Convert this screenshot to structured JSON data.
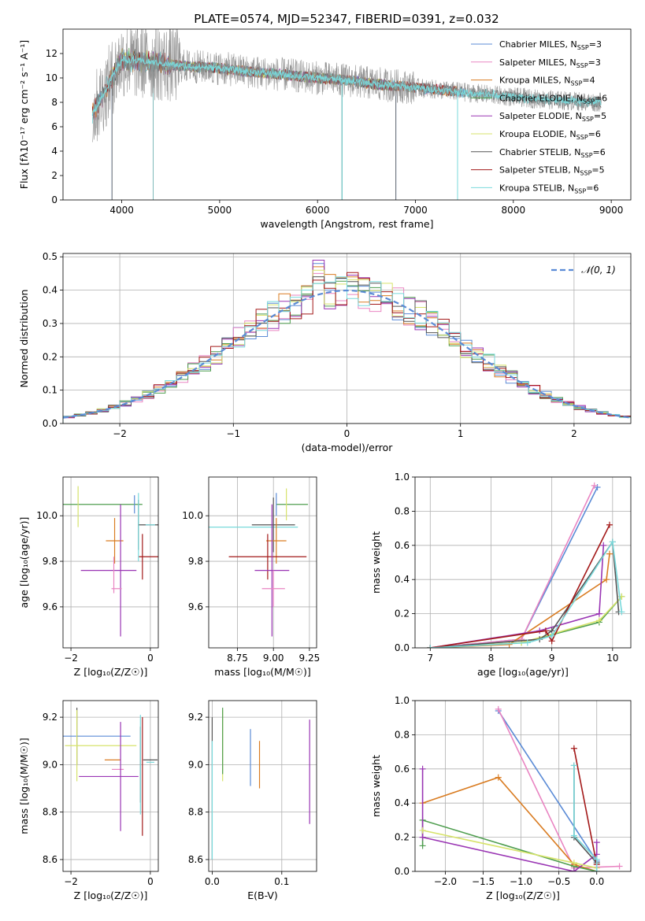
{
  "title": "PLATE=0574, MJD=52347, FIBERID=0391, z=0.032",
  "colors": {
    "chabrier_miles": "#5b8bd6",
    "salpeter_miles": "#e985c2",
    "kroupa_miles": "#d97c22",
    "chabrier_elodie": "#4f9e4f",
    "salpeter_elodie": "#9a36b4",
    "kroupa_elodie": "#d7e36b",
    "chabrier_stelib": "#555555",
    "salpeter_stelib": "#a31919",
    "kroupa_stelib": "#79d9db",
    "normal": "#5b8bd6",
    "grid": "#b0b0b0"
  },
  "chart_data": [
    {
      "id": "spectrum",
      "type": "line",
      "title": "PLATE=0574, MJD=52347, FIBERID=0391, z=0.032",
      "xlabel": "wavelength [Angstrom, rest frame]",
      "ylabel": "Flux [fλ10⁻¹⁷ erg cm⁻² s⁻¹ A⁻¹]",
      "xlim": [
        3400,
        9200
      ],
      "ylim": [
        0,
        14
      ],
      "xticks": [
        4000,
        5000,
        6000,
        7000,
        8000,
        9000
      ],
      "yticks": [
        0,
        2,
        4,
        6,
        8,
        10,
        12
      ],
      "grid": false,
      "legend_position": "upper-right",
      "legend": [
        {
          "label": "Chabrier MILES, N",
          "sub": "SSP",
          "suffix": "=3",
          "color_key": "chabrier_miles",
          "wmin": 3700,
          "wmax": 7500
        },
        {
          "label": "Salpeter MILES, N",
          "sub": "SSP",
          "suffix": "=3",
          "color_key": "salpeter_miles",
          "wmin": 3700,
          "wmax": 7430
        },
        {
          "label": "Kroupa MILES, N",
          "sub": "SSP",
          "suffix": "=4",
          "color_key": "kroupa_miles",
          "wmin": 3700,
          "wmax": 7430
        },
        {
          "label": "Chabrier ELODIE, N",
          "sub": "SSP",
          "suffix": "=6",
          "color_key": "chabrier_elodie",
          "wmin": 3900,
          "wmax": 6800
        },
        {
          "label": "Salpeter ELODIE, N",
          "sub": "SSP",
          "suffix": "=5",
          "color_key": "salpeter_elodie",
          "wmin": 3900,
          "wmax": 6800
        },
        {
          "label": "Kroupa ELODIE, N",
          "sub": "SSP",
          "suffix": "=6",
          "color_key": "kroupa_elodie",
          "wmin": 3900,
          "wmax": 6800
        },
        {
          "label": "Chabrier STELIB, N",
          "sub": "SSP",
          "suffix": "=6",
          "color_key": "chabrier_stelib",
          "wmin": 3700,
          "wmax": 8900
        },
        {
          "label": "Salpeter STELIB, N",
          "sub": "SSP",
          "suffix": "=5",
          "color_key": "salpeter_stelib",
          "wmin": 3700,
          "wmax": 7430
        },
        {
          "label": "Kroupa STELIB, N",
          "sub": "SSP",
          "suffix": "=6",
          "color_key": "kroupa_stelib",
          "wmin": 3700,
          "wmax": 8900
        }
      ],
      "data_trace": {
        "color_key": "chabrier_stelib",
        "x": [
          3700,
          4000,
          4300,
          4600,
          5000,
          5300,
          5600,
          6000,
          6300,
          6600,
          7000,
          7400,
          7800,
          8200,
          8600,
          8900
        ],
        "y": [
          7.0,
          11.5,
          11.3,
          11.0,
          10.8,
          10.5,
          10.3,
          10.0,
          9.8,
          9.5,
          9.2,
          8.9,
          8.6,
          8.3,
          8.1,
          8.0
        ]
      },
      "drops": [
        {
          "x": 3900,
          "y": 0
        },
        {
          "x": 4320,
          "y": 0
        },
        {
          "x": 6250,
          "y": 0
        },
        {
          "x": 6800,
          "y": 0
        },
        {
          "x": 7430,
          "y": 0
        }
      ]
    },
    {
      "id": "residuals",
      "type": "histogram",
      "xlabel": "(data-model)/error",
      "ylabel": "Normed distribution",
      "xlim": [
        -2.5,
        2.5
      ],
      "ylim": [
        0,
        0.51
      ],
      "xticks": [
        -2,
        -1,
        0,
        1,
        2
      ],
      "yticks": [
        0.0,
        0.1,
        0.2,
        0.3,
        0.4,
        0.5
      ],
      "grid": true,
      "legend_position": "upper-right",
      "legend_label": "𝒩(0, 1)",
      "bin_width": 0.1,
      "series": [
        {
          "color_key": "chabrier_miles",
          "peak": 0.48
        },
        {
          "color_key": "salpeter_miles",
          "peak": 0.45
        },
        {
          "color_key": "kroupa_miles",
          "peak": 0.47
        },
        {
          "color_key": "chabrier_elodie",
          "peak": 0.42
        },
        {
          "color_key": "salpeter_elodie",
          "peak": 0.49
        },
        {
          "color_key": "kroupa_elodie",
          "peak": 0.46
        },
        {
          "color_key": "chabrier_stelib",
          "peak": 0.44
        },
        {
          "color_key": "salpeter_stelib",
          "peak": 0.43
        },
        {
          "color_key": "kroupa_stelib",
          "peak": 0.42
        }
      ]
    },
    {
      "id": "age_vs_Z",
      "type": "errorbar",
      "xlabel": "Z [log₁₀(Z/Z☉)]",
      "ylabel": "age  [log₁₀(age/yr)]",
      "xlim": [
        -2.2,
        0.2
      ],
      "ylim": [
        9.42,
        10.17
      ],
      "xticks": [
        -2,
        0
      ],
      "yticks": [
        9.6,
        9.8,
        10.0
      ],
      "grid": true,
      "points": [
        {
          "color_key": "chabrier_elodie",
          "x": -1.2,
          "xerr": 1.0,
          "y": 10.05,
          "yerr": 0.0
        },
        {
          "color_key": "chabrier_miles",
          "x": -0.4,
          "xerr": 0.0,
          "y": 10.05,
          "yerr": 0.04
        },
        {
          "color_key": "kroupa_elodie",
          "x": -1.82,
          "xerr": 0.0,
          "y": 10.04,
          "yerr": 0.09
        },
        {
          "color_key": "kroupa_miles",
          "x": -0.9,
          "xerr": 0.22,
          "y": 9.89,
          "yerr": 0.1
        },
        {
          "color_key": "salpeter_elodie",
          "x": -1.05,
          "xerr": 0.7,
          "y": 9.76,
          "yerr": 0.0
        },
        {
          "color_key": "salpeter_elodie",
          "x": -0.75,
          "xerr": 0.0,
          "y": 9.76,
          "yerr": 0.29
        },
        {
          "color_key": "salpeter_miles",
          "x": -0.85,
          "xerr": 0.13,
          "y": 9.68,
          "yerr": 0.0
        },
        {
          "color_key": "salpeter_miles",
          "x": -0.92,
          "xerr": 0.0,
          "y": 9.74,
          "yerr": 0.08
        },
        {
          "color_key": "chabrier_stelib",
          "x": -0.3,
          "xerr": 0.0,
          "y": 9.96,
          "yerr": 0.11
        },
        {
          "color_key": "chabrier_stelib",
          "x": -0.05,
          "xerr": 0.25,
          "y": 9.96,
          "yerr": 0.0
        },
        {
          "color_key": "salpeter_stelib",
          "x": -0.2,
          "xerr": 0.0,
          "y": 9.82,
          "yerr": 0.1
        },
        {
          "color_key": "salpeter_stelib",
          "x": -0.04,
          "xerr": 0.25,
          "y": 9.82,
          "yerr": 0.0
        },
        {
          "color_key": "kroupa_stelib",
          "x": -0.3,
          "xerr": 0.0,
          "y": 9.95,
          "yerr": 0.15
        },
        {
          "color_key": "kroupa_stelib",
          "x": 0.0,
          "xerr": 0.12,
          "y": 9.96,
          "yerr": 0.0
        }
      ]
    },
    {
      "id": "age_vs_mass",
      "type": "errorbar",
      "xlabel": "mass [log₁₀(M/M☉)]",
      "ylabel": "",
      "xlim": [
        8.55,
        9.3
      ],
      "ylim": [
        9.42,
        10.17
      ],
      "xticks": [
        8.75,
        9.0,
        9.25
      ],
      "yticks": [
        9.6,
        9.8,
        10.0
      ],
      "grid": true,
      "points": [
        {
          "color_key": "chabrier_elodie",
          "x": 9.13,
          "xerr": 0.11,
          "y": 10.05,
          "yerr": 0.0
        },
        {
          "color_key": "kroupa_elodie",
          "x": 9.09,
          "xerr": 0.0,
          "y": 10.05,
          "yerr": 0.07
        },
        {
          "color_key": "chabrier_miles",
          "x": 9.02,
          "xerr": 0.0,
          "y": 10.05,
          "yerr": 0.05
        },
        {
          "color_key": "kroupa_stelib",
          "x": 8.85,
          "xerr": 0.32,
          "y": 9.95,
          "yerr": 0.0
        },
        {
          "color_key": "chabrier_stelib",
          "x": 9.0,
          "xerr": 0.15,
          "y": 9.96,
          "yerr": 0.12
        },
        {
          "color_key": "kroupa_miles",
          "x": 9.02,
          "xerr": 0.07,
          "y": 9.89,
          "yerr": 0.1
        },
        {
          "color_key": "salpeter_stelib",
          "x": 8.96,
          "xerr": 0.27,
          "y": 9.82,
          "yerr": 0.1
        },
        {
          "color_key": "salpeter_elodie",
          "x": 8.99,
          "xerr": 0.12,
          "y": 9.76,
          "yerr": 0.29
        },
        {
          "color_key": "salpeter_miles",
          "x": 9.0,
          "xerr": 0.08,
          "y": 9.68,
          "yerr": 0.08
        }
      ]
    },
    {
      "id": "massweight_vs_age",
      "type": "line",
      "xlabel": "age  [log₁₀(age/yr)]",
      "ylabel": "mass weight",
      "xlim": [
        6.75,
        10.3
      ],
      "ylim": [
        0,
        1.0
      ],
      "xticks": [
        7,
        8,
        9,
        10
      ],
      "yticks": [
        0.0,
        0.2,
        0.4,
        0.6,
        0.8,
        1.0
      ],
      "grid": true,
      "series": [
        {
          "color_key": "chabrier_miles",
          "x": [
            7.0,
            8.5,
            9.75
          ],
          "y": [
            0.0,
            0.05,
            0.94
          ]
        },
        {
          "color_key": "salpeter_miles",
          "x": [
            7.0,
            8.5,
            9.7
          ],
          "y": [
            0.0,
            0.05,
            0.95
          ]
        },
        {
          "color_key": "kroupa_miles",
          "x": [
            7.0,
            8.3,
            9.9,
            9.95
          ],
          "y": [
            0.0,
            0.02,
            0.4,
            0.55
          ]
        },
        {
          "color_key": "chabrier_elodie",
          "x": [
            7.0,
            8.5,
            9.78,
            10.15
          ],
          "y": [
            0.0,
            0.03,
            0.15,
            0.3
          ]
        },
        {
          "color_key": "salpeter_elodie",
          "x": [
            7.0,
            8.8,
            9.78,
            9.85
          ],
          "y": [
            0.0,
            0.1,
            0.2,
            0.6
          ]
        },
        {
          "color_key": "kroupa_elodie",
          "x": [
            7.0,
            8.5,
            9.78,
            10.15
          ],
          "y": [
            0.0,
            0.03,
            0.16,
            0.3
          ]
        },
        {
          "color_key": "chabrier_stelib",
          "x": [
            7.0,
            8.8,
            9.0,
            10.0,
            10.1
          ],
          "y": [
            0.0,
            0.05,
            0.1,
            0.62,
            0.21
          ]
        },
        {
          "color_key": "salpeter_stelib",
          "x": [
            7.0,
            8.9,
            9.0,
            9.95
          ],
          "y": [
            0.0,
            0.1,
            0.04,
            0.72
          ]
        },
        {
          "color_key": "kroupa_stelib",
          "x": [
            7.0,
            8.6,
            9.0,
            10.0,
            10.15
          ],
          "y": [
            0.0,
            0.03,
            0.07,
            0.62,
            0.21
          ]
        }
      ]
    },
    {
      "id": "mass_vs_Z",
      "type": "errorbar",
      "xlabel": "Z [log₁₀(Z/Z☉)]",
      "ylabel": "mass [log₁₀(M/M☉)]",
      "xlim": [
        -2.2,
        0.2
      ],
      "ylim": [
        8.55,
        9.27
      ],
      "xticks": [
        -2,
        0
      ],
      "yticks": [
        8.6,
        8.8,
        9.0,
        9.2
      ],
      "grid": true,
      "points": [
        {
          "color_key": "chabrier_miles",
          "x": -1.35,
          "xerr": 0.85,
          "y": 9.12,
          "yerr": 0.0
        },
        {
          "color_key": "chabrier_stelib",
          "x": -1.85,
          "xerr": 0.0,
          "y": 9.12,
          "yerr": 0.12
        },
        {
          "color_key": "kroupa_elodie",
          "x": -1.25,
          "xerr": 0.9,
          "y": 9.08,
          "yerr": 0.0
        },
        {
          "color_key": "kroupa_elodie",
          "x": -1.85,
          "xerr": 0.0,
          "y": 9.08,
          "yerr": 0.15
        },
        {
          "color_key": "kroupa_miles",
          "x": -0.95,
          "xerr": 0.2,
          "y": 9.02,
          "yerr": 0.0
        },
        {
          "color_key": "salpeter_miles",
          "x": -0.82,
          "xerr": 0.15,
          "y": 8.98,
          "yerr": 0.0
        },
        {
          "color_key": "salpeter_elodie",
          "x": -1.05,
          "xerr": 0.75,
          "y": 8.95,
          "yerr": 0.0
        },
        {
          "color_key": "salpeter_elodie",
          "x": -0.75,
          "xerr": 0.0,
          "y": 8.95,
          "yerr": 0.23
        },
        {
          "color_key": "chabrier_stelib",
          "x": -0.25,
          "xerr": 0.0,
          "y": 9.0,
          "yerr": 0.16
        },
        {
          "color_key": "chabrier_stelib",
          "x": 0.0,
          "xerr": 0.18,
          "y": 9.02,
          "yerr": 0.0
        },
        {
          "color_key": "salpeter_stelib",
          "x": -0.2,
          "xerr": 0.0,
          "y": 8.95,
          "yerr": 0.25
        },
        {
          "color_key": "kroupa_stelib",
          "x": -0.25,
          "xerr": 0.0,
          "y": 9.0,
          "yerr": 0.21
        },
        {
          "color_key": "kroupa_stelib",
          "x": 0.0,
          "xerr": 0.1,
          "y": 9.01,
          "yerr": 0.0
        }
      ]
    },
    {
      "id": "mass_vs_ebv",
      "type": "errorbar",
      "xlabel": "E(B-V)",
      "ylabel": "",
      "xlim": [
        -0.005,
        0.15
      ],
      "ylim": [
        8.55,
        9.27
      ],
      "xticks": [
        0.0,
        0.1
      ],
      "yticks": [
        8.6,
        8.8,
        9.0,
        9.2
      ],
      "grid": true,
      "points": [
        {
          "color_key": "chabrier_stelib",
          "x": 0.0,
          "xerr": 0.0,
          "y": 8.9,
          "yerr": 0.3
        },
        {
          "color_key": "kroupa_stelib",
          "x": 0.0,
          "xerr": 0.0,
          "y": 8.85,
          "yerr": 0.25
        },
        {
          "color_key": "kroupa_elodie",
          "x": 0.015,
          "xerr": 0.0,
          "y": 9.08,
          "yerr": 0.15
        },
        {
          "color_key": "chabrier_elodie",
          "x": 0.015,
          "xerr": 0.0,
          "y": 9.1,
          "yerr": 0.14
        },
        {
          "color_key": "chabrier_miles",
          "x": 0.055,
          "xerr": 0.0,
          "y": 9.03,
          "yerr": 0.12
        },
        {
          "color_key": "kroupa_miles",
          "x": 0.068,
          "xerr": 0.0,
          "y": 9.0,
          "yerr": 0.1
        },
        {
          "color_key": "salpeter_elodie",
          "x": 0.14,
          "xerr": 0.0,
          "y": 8.97,
          "yerr": 0.22
        }
      ]
    },
    {
      "id": "massweight_vs_Z",
      "type": "line",
      "xlabel": "Z [log₁₀(Z/Z☉)]",
      "ylabel": "mass weight",
      "xlim": [
        -2.4,
        0.45
      ],
      "ylim": [
        0,
        1.0
      ],
      "xticks": [
        -2.0,
        -1.5,
        -1.0,
        -0.5,
        0.0
      ],
      "yticks": [
        0.0,
        0.2,
        0.4,
        0.6,
        0.8,
        1.0
      ],
      "grid": true,
      "series": [
        {
          "color_key": "chabrier_miles",
          "x": [
            -1.3,
            0.0
          ],
          "y": [
            0.94,
            0.06
          ]
        },
        {
          "color_key": "salpeter_miles",
          "x": [
            -1.3,
            -0.3,
            0.3
          ],
          "y": [
            0.95,
            0.02,
            0.03
          ]
        },
        {
          "color_key": "kroupa_miles",
          "x": [
            -2.3,
            -1.3,
            -0.3,
            0.0
          ],
          "y": [
            0.4,
            0.55,
            0.04,
            0.0
          ]
        },
        {
          "color_key": "chabrier_elodie",
          "x": [
            -2.3,
            -2.3,
            -0.3,
            0.0
          ],
          "y": [
            0.15,
            0.3,
            0.03,
            0.0
          ]
        },
        {
          "color_key": "salpeter_elodie",
          "x": [
            -2.3,
            -2.3,
            -0.3,
            0.0,
            0.0
          ],
          "y": [
            0.6,
            0.2,
            0.0,
            0.1,
            0.17
          ]
        },
        {
          "color_key": "kroupa_elodie",
          "x": [
            -2.3,
            -0.3,
            0.0
          ],
          "y": [
            0.24,
            0.05,
            0.02
          ]
        },
        {
          "color_key": "chabrier_stelib",
          "x": [
            -0.3,
            -0.3,
            0.0
          ],
          "y": [
            0.62,
            0.2,
            0.05
          ]
        },
        {
          "color_key": "salpeter_stelib",
          "x": [
            -0.3,
            0.0
          ],
          "y": [
            0.72,
            0.04
          ]
        },
        {
          "color_key": "kroupa_stelib",
          "x": [
            -0.3,
            -0.3,
            0.0,
            0.0
          ],
          "y": [
            0.62,
            0.21,
            0.07,
            0.0
          ]
        }
      ]
    }
  ]
}
